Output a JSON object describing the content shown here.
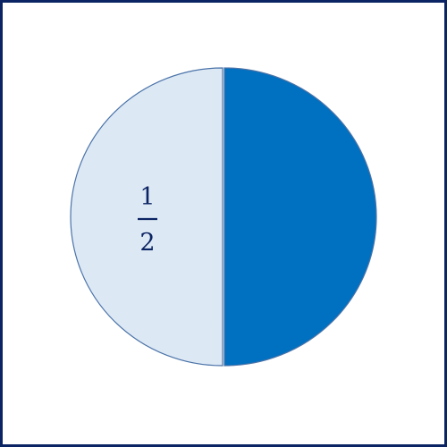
{
  "fraction": {
    "numerator": "1",
    "denominator": "2",
    "shaded_parts": 1,
    "unshaded_parts": 1,
    "total_parts": 2
  },
  "colors": {
    "frame": "#0b2463",
    "shaded": "#0070c0",
    "unshaded": "#dde8f5",
    "outline": "#4a73a8",
    "label": "#0b2463"
  }
}
